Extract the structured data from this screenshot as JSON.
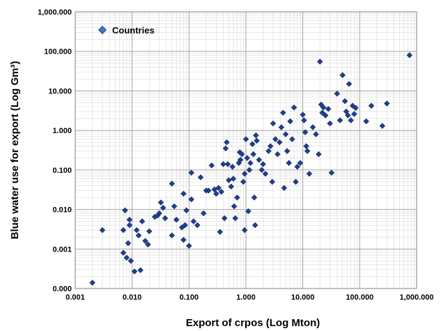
{
  "chart_data": {
    "type": "scatter",
    "title": "",
    "xlabel": "Export of crpos (Log Mton)",
    "ylabel": "Blue water use for export (Log Gm³)",
    "xscale": "log",
    "yscale": "log",
    "xlim": [
      0.001,
      1000
    ],
    "ylim": [
      0.0001,
      1000
    ],
    "grid": true,
    "legend": "top-left",
    "x_ticks": [
      {
        "value": 0.001,
        "label": "0.001"
      },
      {
        "value": 0.01,
        "label": "0.010"
      },
      {
        "value": 0.1,
        "label": "0.100"
      },
      {
        "value": 1,
        "label": "1.000"
      },
      {
        "value": 10,
        "label": "10.000"
      },
      {
        "value": 100,
        "label": "100.000"
      },
      {
        "value": 1000,
        "label": "1,000.000"
      }
    ],
    "y_ticks": [
      {
        "value": 0.0001,
        "label": "0.000"
      },
      {
        "value": 0.001,
        "label": "0.001"
      },
      {
        "value": 0.01,
        "label": "0.010"
      },
      {
        "value": 0.1,
        "label": "0.100"
      },
      {
        "value": 1,
        "label": "1.000"
      },
      {
        "value": 10,
        "label": "10.000"
      },
      {
        "value": 100,
        "label": "100.000"
      },
      {
        "value": 1000,
        "label": "1,000.000"
      }
    ],
    "series": [
      {
        "name": "Countries",
        "color": "#1f3f8a",
        "marker": "diamond",
        "points": [
          [
            0.002,
            0.00014
          ],
          [
            0.003,
            0.003
          ],
          [
            0.007,
            0.0008
          ],
          [
            0.007,
            0.003
          ],
          [
            0.0075,
            0.0095
          ],
          [
            0.008,
            0.0006
          ],
          [
            0.0085,
            0.0014
          ],
          [
            0.009,
            0.004
          ],
          [
            0.009,
            0.0055
          ],
          [
            0.0095,
            0.0005
          ],
          [
            0.011,
            0.00027
          ],
          [
            0.012,
            0.003
          ],
          [
            0.013,
            0.0022
          ],
          [
            0.014,
            0.00029
          ],
          [
            0.015,
            0.005
          ],
          [
            0.017,
            0.0016
          ],
          [
            0.019,
            0.0013
          ],
          [
            0.02,
            0.0028
          ],
          [
            0.025,
            0.0065
          ],
          [
            0.028,
            0.007
          ],
          [
            0.03,
            0.008
          ],
          [
            0.032,
            0.015
          ],
          [
            0.035,
            0.011
          ],
          [
            0.038,
            0.006
          ],
          [
            0.05,
            0.0022
          ],
          [
            0.05,
            0.045
          ],
          [
            0.055,
            0.012
          ],
          [
            0.06,
            0.0055
          ],
          [
            0.075,
            0.0035
          ],
          [
            0.08,
            0.0017
          ],
          [
            0.08,
            0.025
          ],
          [
            0.085,
            0.004
          ],
          [
            0.09,
            0.0095
          ],
          [
            0.1,
            0.0012
          ],
          [
            0.11,
            0.085
          ],
          [
            0.11,
            0.018
          ],
          [
            0.12,
            0.005
          ],
          [
            0.14,
            0.004
          ],
          [
            0.16,
            0.065
          ],
          [
            0.18,
            0.008
          ],
          [
            0.2,
            0.03
          ],
          [
            0.22,
            0.03
          ],
          [
            0.25,
            0.13
          ],
          [
            0.28,
            0.032
          ],
          [
            0.3,
            0.025
          ],
          [
            0.33,
            0.035
          ],
          [
            0.35,
            0.0027
          ],
          [
            0.37,
            0.028
          ],
          [
            0.4,
            0.14
          ],
          [
            0.42,
            0.006
          ],
          [
            0.44,
            0.35
          ],
          [
            0.46,
            0.5
          ],
          [
            0.48,
            0.14
          ],
          [
            0.5,
            0.055
          ],
          [
            0.55,
            0.038
          ],
          [
            0.58,
            0.12
          ],
          [
            0.6,
            0.06
          ],
          [
            0.62,
            0.012
          ],
          [
            0.65,
            0.006
          ],
          [
            0.7,
            0.02
          ],
          [
            0.75,
            0.15
          ],
          [
            0.78,
            0.28
          ],
          [
            0.8,
            0.18
          ],
          [
            0.85,
            0.25
          ],
          [
            0.9,
            0.05
          ],
          [
            0.95,
            0.08
          ],
          [
            0.95,
            0.003
          ],
          [
            1.0,
            0.6
          ],
          [
            1.05,
            0.2
          ],
          [
            1.1,
            0.009
          ],
          [
            1.15,
            0.1
          ],
          [
            1.2,
            0.15
          ],
          [
            1.3,
            0.45
          ],
          [
            1.35,
            0.25
          ],
          [
            1.4,
            0.02
          ],
          [
            1.45,
            0.004
          ],
          [
            1.5,
            0.75
          ],
          [
            1.55,
            0.55
          ],
          [
            1.7,
            0.18
          ],
          [
            1.9,
            0.1
          ],
          [
            2.0,
            0.14
          ],
          [
            2.2,
            0.08
          ],
          [
            2.5,
            0.3
          ],
          [
            2.7,
            0.4
          ],
          [
            2.9,
            0.05
          ],
          [
            3.0,
            1.5
          ],
          [
            3.3,
            0.6
          ],
          [
            3.6,
            0.25
          ],
          [
            3.9,
            0.5
          ],
          [
            4.2,
            1.2
          ],
          [
            4.5,
            2.8
          ],
          [
            4.7,
            0.035
          ],
          [
            5.0,
            0.8
          ],
          [
            5.3,
            0.3
          ],
          [
            5.7,
            0.15
          ],
          [
            6.0,
            1.7
          ],
          [
            6.5,
            0.6
          ],
          [
            7.0,
            3.8
          ],
          [
            7.5,
            0.05
          ],
          [
            8.0,
            0.12
          ],
          [
            9.0,
            0.15
          ],
          [
            10.0,
            2.5
          ],
          [
            10.5,
            1.8
          ],
          [
            11.0,
            0.9
          ],
          [
            11.5,
            0.4
          ],
          [
            12.0,
            0.3
          ],
          [
            13.0,
            0.08
          ],
          [
            15.0,
            1.2
          ],
          [
            17.0,
            0.8
          ],
          [
            19.0,
            0.25
          ],
          [
            20.0,
            55
          ],
          [
            21.0,
            4.5
          ],
          [
            22.0,
            2.8
          ],
          [
            23.0,
            3.8
          ],
          [
            25.0,
            2.4
          ],
          [
            28.0,
            3.5
          ],
          [
            30.0,
            1.5
          ],
          [
            32.0,
            0.085
          ],
          [
            40.0,
            8.5
          ],
          [
            45.0,
            1.8
          ],
          [
            50.0,
            25
          ],
          [
            55.0,
            5.5
          ],
          [
            58.0,
            3.0
          ],
          [
            62.0,
            2.4
          ],
          [
            65.0,
            15
          ],
          [
            70.0,
            1.8
          ],
          [
            75.0,
            4.2
          ],
          [
            80.0,
            2.6
          ],
          [
            85.0,
            3.7
          ],
          [
            130.0,
            1.7
          ],
          [
            160.0,
            4.2
          ],
          [
            250.0,
            1.3
          ],
          [
            300.0,
            4.8
          ],
          [
            750.0,
            80
          ]
        ]
      }
    ]
  }
}
